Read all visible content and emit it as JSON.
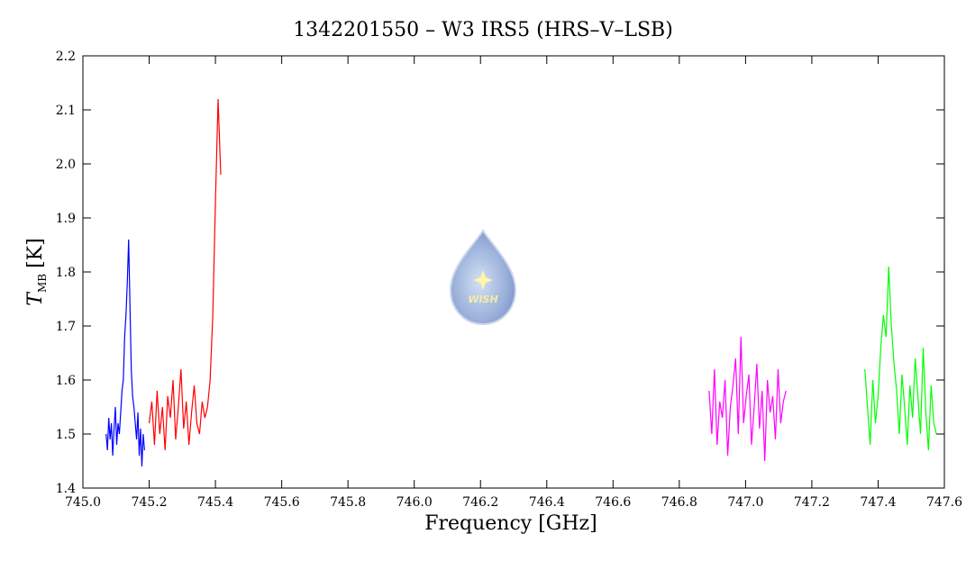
{
  "chart_data": {
    "type": "line",
    "title": "1342201550 – W3 IRS5 (HRS–V–LSB)",
    "xlabel": "Frequency [GHz]",
    "ylabel": {
      "symbol": "T",
      "subscript": "MB",
      "unit": "[K]"
    },
    "watermark": "WISH",
    "xlim": [
      745.0,
      747.6
    ],
    "xticks": [
      {
        "value": 745.0,
        "label": "745.0"
      },
      745.2,
      745.4,
      745.6,
      745.8,
      {
        "value": 746.0,
        "label": "746.0"
      },
      746.2,
      746.4,
      746.6,
      746.8,
      {
        "value": 747.0,
        "label": "747.0"
      },
      747.2,
      747.4,
      747.6
    ],
    "ylim": [
      1.4,
      2.2
    ],
    "yticks": [
      1.4,
      1.5,
      1.6,
      1.7,
      1.8,
      1.9,
      {
        "value": 2.0,
        "label": "2.0"
      },
      2.1,
      2.2
    ],
    "series": [
      {
        "color": "#0000ff",
        "x": [
          745.07,
          745.074,
          745.078,
          745.082,
          745.086,
          745.09,
          745.094,
          745.098,
          745.102,
          745.106,
          745.11,
          745.114,
          745.118,
          745.122,
          745.126,
          745.13,
          745.134,
          745.138,
          745.142,
          745.146,
          745.15,
          745.154,
          745.158,
          745.162,
          745.166,
          745.17,
          745.174,
          745.178,
          745.182,
          745.186
        ],
        "values": [
          1.5,
          1.47,
          1.53,
          1.49,
          1.52,
          1.46,
          1.51,
          1.55,
          1.48,
          1.52,
          1.5,
          1.54,
          1.58,
          1.6,
          1.68,
          1.72,
          1.78,
          1.86,
          1.74,
          1.62,
          1.57,
          1.55,
          1.52,
          1.49,
          1.54,
          1.46,
          1.51,
          1.44,
          1.5,
          1.47
        ]
      },
      {
        "color": "#ff0000",
        "x": [
          745.2,
          745.208,
          745.216,
          745.224,
          745.232,
          745.24,
          745.248,
          745.256,
          745.264,
          745.272,
          745.28,
          745.288,
          745.296,
          745.304,
          745.312,
          745.32,
          745.328,
          745.336,
          745.344,
          745.352,
          745.36,
          745.368,
          745.376,
          745.384,
          745.392,
          745.4,
          745.408,
          745.416
        ],
        "values": [
          1.52,
          1.56,
          1.48,
          1.58,
          1.5,
          1.55,
          1.47,
          1.57,
          1.53,
          1.6,
          1.49,
          1.55,
          1.62,
          1.51,
          1.56,
          1.48,
          1.54,
          1.59,
          1.52,
          1.5,
          1.56,
          1.53,
          1.55,
          1.6,
          1.72,
          1.93,
          2.12,
          1.98
        ]
      },
      {
        "color": "#ff00ff",
        "x": [
          746.89,
          746.898,
          746.906,
          746.914,
          746.922,
          746.93,
          746.938,
          746.946,
          746.954,
          746.962,
          746.97,
          746.978,
          746.986,
          746.994,
          747.002,
          747.01,
          747.018,
          747.026,
          747.034,
          747.042,
          747.05,
          747.058,
          747.066,
          747.074,
          747.082,
          747.09,
          747.098,
          747.106,
          747.114,
          747.122
        ],
        "values": [
          1.58,
          1.5,
          1.62,
          1.48,
          1.56,
          1.53,
          1.6,
          1.46,
          1.55,
          1.59,
          1.64,
          1.5,
          1.68,
          1.52,
          1.57,
          1.61,
          1.48,
          1.55,
          1.63,
          1.51,
          1.58,
          1.45,
          1.6,
          1.54,
          1.57,
          1.49,
          1.62,
          1.52,
          1.56,
          1.58
        ]
      },
      {
        "color": "#00ff00",
        "x": [
          747.36,
          747.368,
          747.376,
          747.384,
          747.392,
          747.4,
          747.408,
          747.416,
          747.424,
          747.432,
          747.44,
          747.448,
          747.456,
          747.464,
          747.472,
          747.48,
          747.488,
          747.496,
          747.504,
          747.512,
          747.52,
          747.528,
          747.536,
          747.544,
          747.552,
          747.56,
          747.568,
          747.576
        ],
        "values": [
          1.62,
          1.55,
          1.48,
          1.6,
          1.52,
          1.57,
          1.66,
          1.72,
          1.68,
          1.81,
          1.7,
          1.63,
          1.58,
          1.5,
          1.61,
          1.55,
          1.48,
          1.59,
          1.53,
          1.64,
          1.57,
          1.5,
          1.66,
          1.54,
          1.47,
          1.59,
          1.52,
          1.5
        ]
      }
    ]
  }
}
